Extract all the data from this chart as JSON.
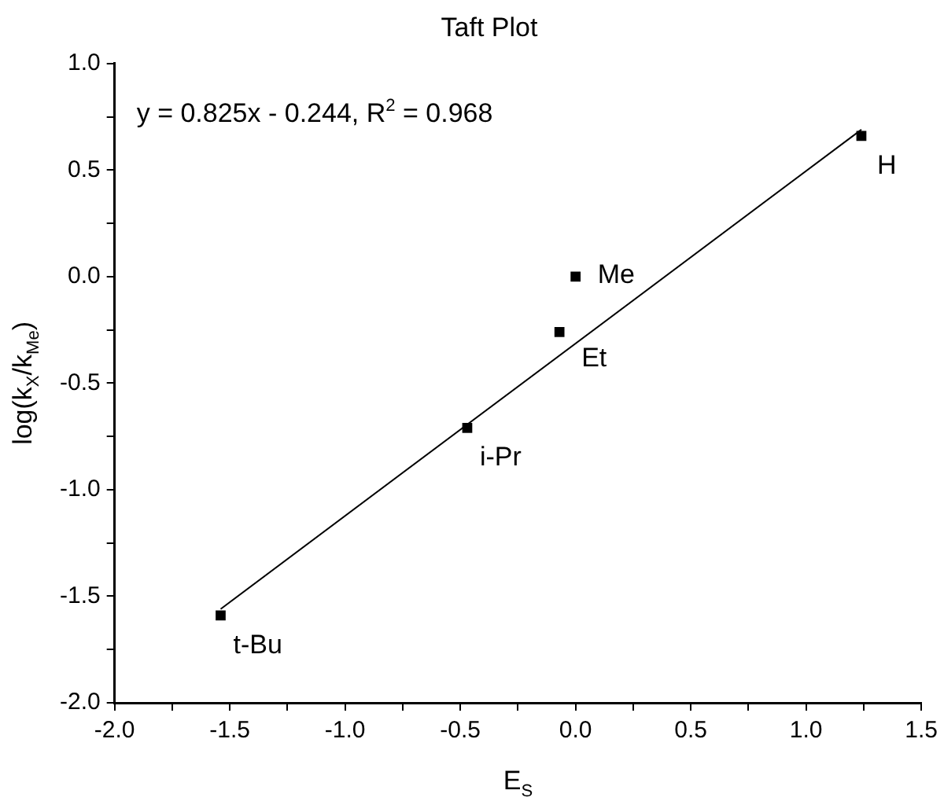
{
  "chart_data": {
    "type": "scatter",
    "title": "Taft Plot",
    "xlabel": "E$_{S}$",
    "ylabel": "log(k$_{X}$/k$_{Me}$)",
    "x": [
      -1.54,
      -0.47,
      -0.07,
      0,
      1.24
    ],
    "series": [
      {
        "color": "#000000",
        "marker": "square",
        "values": [
          -1.59,
          -0.71,
          -0.26,
          0,
          0.66
        ]
      },
      {
        "type": "line",
        "color": "#000000",
        "marker": "none",
        "line_style": "solid",
        "x": [
          -1.54,
          1.24
        ],
        "values": [
          -1.56,
          0.69
        ]
      }
    ],
    "annotations": [
      "y = 0.825x - 0.244, R$^{2}$ = 0.968",
      {
        "text": "t-Bu",
        "x": -1.54,
        "y": -1.59
      },
      {
        "text": "i-Pr",
        "x": -0.47,
        "y": -0.71
      },
      {
        "text": "Et",
        "x": -0.07,
        "y": -0.26
      },
      {
        "text": "Me",
        "x": 0,
        "y": 0
      },
      {
        "text": "H",
        "x": 1.24,
        "y": 0.66
      }
    ],
    "xlim": [
      -2.0,
      1.5
    ],
    "xticks": [
      {
        "value": -2.0,
        "label": "-2.0"
      },
      {
        "value": -1.75,
        "label": null
      },
      {
        "value": -1.5,
        "label": "-1.5"
      },
      {
        "value": -1.25,
        "label": null
      },
      {
        "value": -1.0,
        "label": "-1.0"
      },
      {
        "value": -0.75,
        "label": null
      },
      {
        "value": -0.5,
        "label": "-0.5"
      },
      {
        "value": -0.25,
        "label": null
      },
      {
        "value": 0,
        "label": "0.0"
      },
      {
        "value": 0.25,
        "label": null
      },
      {
        "value": 0.5,
        "label": "0.5"
      },
      {
        "value": 0.75,
        "label": null
      },
      {
        "value": 1.0,
        "label": "1.0"
      },
      {
        "value": 1.25,
        "label": null
      },
      {
        "value": 1.5,
        "label": "1.5"
      }
    ],
    "ylim": [
      -2.0,
      1.0
    ],
    "yticks": [
      {
        "value": -2.0,
        "label": "-2.0"
      },
      {
        "value": -1.75,
        "label": null
      },
      {
        "value": -1.5,
        "label": "-1.5"
      },
      {
        "value": -1.25,
        "label": null
      },
      {
        "value": -1.0,
        "label": "-1.0"
      },
      {
        "value": -0.75,
        "label": null
      },
      {
        "value": -0.5,
        "label": "-0.5"
      },
      {
        "value": -0.25,
        "label": null
      },
      {
        "value": 0,
        "label": "0.0"
      },
      {
        "value": 0.25,
        "label": null
      },
      {
        "value": 0.5,
        "label": "0.5"
      },
      {
        "value": 0.75,
        "label": null
      },
      {
        "value": 1.0,
        "label": "1.0"
      }
    ],
    "grid": false,
    "legend": false
  }
}
